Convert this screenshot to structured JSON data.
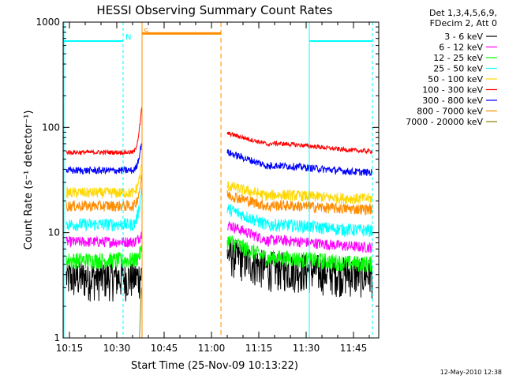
{
  "chart_data": {
    "type": "line",
    "title": "HESSI Observing Summary Count Rates",
    "xlabel": "Start Time (25-Nov-09 10:13:22)",
    "ylabel": "Count Rate (s⁻¹ detector⁻¹)",
    "y_scale": "log",
    "ylim": [
      1,
      1000
    ],
    "xlim_minutes": [
      "10:13",
      "11:53"
    ],
    "x_ticks": [
      "10:15",
      "10:30",
      "10:45",
      "11:00",
      "11:15",
      "11:30",
      "11:45"
    ],
    "y_ticks": [
      "1",
      "10",
      "100",
      "1000"
    ],
    "legend_header": [
      "Det 1,3,4,5,6,9,",
      "FDecim 2, Att 0"
    ],
    "legend_position": "right",
    "footer_date": "12-May-2010 12:38",
    "markers": [
      {
        "label": "N",
        "time": "10:32",
        "color": "#00ffff"
      },
      {
        "label": "S",
        "time": "10:38",
        "color": "#ff8c00"
      }
    ],
    "intervals": [
      {
        "kind": "night",
        "start": "10:13",
        "end": "10:32",
        "color": "#00ffff",
        "level": 660
      },
      {
        "kind": "saa",
        "start": "10:38",
        "end": "11:03",
        "color": "#ff8c00",
        "level": 780
      },
      {
        "kind": "night",
        "start": "11:31",
        "end": "11:51",
        "color": "#00ffff",
        "level": 660
      }
    ],
    "gaps": [
      [
        "10:38",
        "11:05"
      ]
    ],
    "series": [
      {
        "name": "3 - 6 keV",
        "color": "#000000",
        "before": 3.8,
        "peak": 4,
        "after_start": 6.5,
        "after_mid": 4.5,
        "after_end": 4.2,
        "noise": 0.14
      },
      {
        "name": "6 - 12 keV",
        "color": "#ff00ff",
        "before": 8.2,
        "peak": 10,
        "after_start": 12,
        "after_mid": 8.2,
        "after_end": 7.6,
        "noise": 0.06
      },
      {
        "name": "12 - 25 keV",
        "color": "#00ff00",
        "before": 5.5,
        "peak": 7,
        "after_start": 8.5,
        "after_mid": 5.6,
        "after_end": 5.3,
        "noise": 0.09
      },
      {
        "name": "25 - 50 keV",
        "color": "#00ffff",
        "before": 12,
        "peak": 28,
        "after_start": 17,
        "after_mid": 11.5,
        "after_end": 11,
        "noise": 0.07
      },
      {
        "name": "50 - 100 keV",
        "color": "#ffd700",
        "before": 24,
        "peak": 46,
        "after_start": 28,
        "after_mid": 22,
        "after_end": 22,
        "noise": 0.06
      },
      {
        "name": "100 - 300 keV",
        "color": "#ff0000",
        "before": 58,
        "peak": 165,
        "after_start": 88,
        "after_mid": 68,
        "after_end": 62,
        "noise": 0.025
      },
      {
        "name": "300 - 800 keV",
        "color": "#0000ff",
        "before": 39,
        "peak": 78,
        "after_start": 58,
        "after_mid": 42,
        "after_end": 39,
        "noise": 0.04
      },
      {
        "name": "800 - 7000 keV",
        "color": "#ff8c00",
        "before": 18,
        "peak": 36,
        "after_start": 23,
        "after_mid": 17.5,
        "after_end": 17.5,
        "noise": 0.06
      },
      {
        "name": "7000 - 20000 keV",
        "color": "#8b8000",
        "before": null,
        "peak": 3,
        "after_start": null,
        "after_mid": null,
        "after_end": null,
        "noise": 0
      }
    ]
  }
}
